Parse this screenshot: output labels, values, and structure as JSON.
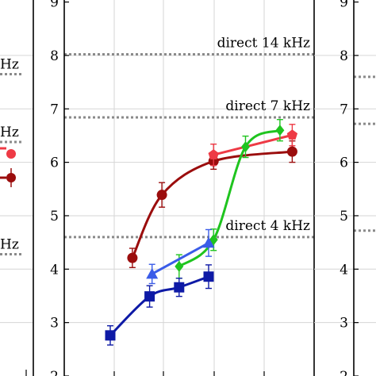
{
  "chart_data": {
    "type": "line",
    "title": "",
    "xlabel": "",
    "ylabel": "",
    "ylim": [
      2,
      9
    ],
    "y_ticks": [
      "2",
      "3",
      "4",
      "5",
      "6",
      "7",
      "8",
      "9"
    ],
    "grid": true,
    "legend": "none",
    "reference_lines": [
      {
        "label": "direct 14 kHz",
        "y": 8.02
      },
      {
        "label": "direct 7 kHz",
        "y": 6.84
      },
      {
        "label": "direct 4 kHz",
        "y": 4.6
      }
    ],
    "left_panel": {
      "partial_labels": [
        "Hz",
        "Hz",
        "Hz"
      ],
      "dotted_levels": [
        7.65,
        6.38,
        4.28
      ]
    },
    "right_panel": {
      "y_ticks": [
        "2",
        "3",
        "4",
        "5",
        "6",
        "7",
        "8",
        "9"
      ],
      "dotted_levels": [
        7.6,
        6.72,
        4.72
      ]
    },
    "series": [
      {
        "marker": "circle",
        "color": "#9b0d0d",
        "points": [
          [
            0.45,
            4.21,
            0.18
          ],
          [
            1.05,
            5.39,
            0.23
          ],
          [
            2.1,
            6.02,
            0.15
          ],
          [
            3.7,
            6.2,
            0.2
          ]
        ]
      },
      {
        "marker": "pentagon",
        "color": "#ee3a45",
        "points": [
          [
            2.1,
            6.14,
            0.2
          ],
          [
            3.7,
            6.51,
            0.2
          ]
        ]
      },
      {
        "marker": "diamond",
        "color": "#1fc41f",
        "points": [
          [
            1.4,
            4.05,
            0.22
          ],
          [
            2.1,
            4.55,
            0.2
          ],
          [
            2.75,
            6.29,
            0.2
          ],
          [
            3.45,
            6.6,
            0.2
          ]
        ]
      },
      {
        "marker": "triangle",
        "color": "#3a5ce8",
        "points": [
          [
            0.85,
            3.91,
            0.18
          ],
          [
            2.0,
            4.49,
            0.25
          ]
        ]
      },
      {
        "marker": "square",
        "color": "#0e1aa6",
        "points": [
          [
            0.0,
            2.76,
            0.18
          ],
          [
            0.8,
            3.49,
            0.2
          ],
          [
            1.4,
            3.66,
            0.17
          ],
          [
            2.0,
            3.86,
            0.22
          ]
        ]
      }
    ]
  }
}
